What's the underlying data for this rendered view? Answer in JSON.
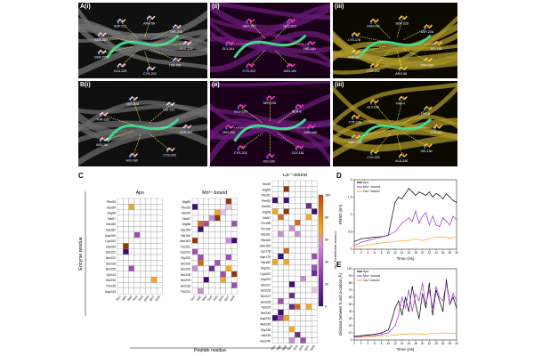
{
  "figure": {
    "panel_A_label": "A(i)",
    "panel_A_ii": "(ii)",
    "panel_A_iii": "(iii)",
    "panel_B_label": "B(i)",
    "panel_B_ii": "(ii)",
    "panel_B_iii": "(iii)",
    "panel_C_label": "C",
    "panel_D_label": "D",
    "panel_E_label": "E",
    "structure_labels": {
      "Ai": [
        "GLU-229",
        "HIS-180",
        "CYS-202",
        "GLU-226",
        "SER-225",
        "SER-227",
        "ASP-221",
        "ARG-56",
        "THR-235"
      ],
      "Aii": [
        "HIS-180",
        "ASN-160",
        "CYS-202",
        "GLY-181",
        "SER-157",
        "GLU-221"
      ],
      "Aiii": [
        "HIS-180",
        "THR-180",
        "ARG-56",
        "CYS-202",
        "ASP-61",
        "LYS-178",
        "ASN-162",
        "SER-226",
        "ASP-226"
      ],
      "Bi": [
        "SER-227",
        "CYS-202",
        "HIS-180",
        "ARG-56",
        "THR-226",
        "SER-225",
        "HIS-231"
      ],
      "Bii": [
        "ASN-160",
        "GLY-181",
        "HIS-180",
        "CYS-202",
        "SER-200",
        "GLU-226",
        "SER-228",
        "SER-8"
      ],
      "Biii": [
        "LYS-207",
        "HIS-180",
        "ALA-240",
        "CYS-202",
        "SER-230",
        "TYR-228",
        "GLY-236",
        "THR-4",
        "THR-8"
      ]
    }
  },
  "heatmap": {
    "colorbar_label": "H-bond occupancy (%)",
    "colorbar_ticks": [
      "100",
      "80",
      "60",
      "40",
      "20",
      "0"
    ],
    "y_axis_label": "Enzyme residue",
    "x_axis_label": "Peptide residue",
    "peptide_residues": [
      "Thr1",
      "Val2",
      "Ala3",
      "Thr4",
      "Thr5",
      "Gln6",
      "Gln7",
      "Ser8"
    ],
    "apo": {
      "title": "Apo",
      "rows": [
        "Phe53",
        "Asn54",
        "Arg56",
        "His57",
        "His160",
        "Gly181",
        "Asp200",
        "Cys202",
        "Gly203",
        "Ser221",
        "Ser222",
        "Glu226",
        "Ser225",
        "Tyr229",
        "Ser230",
        "Thr235",
        "Asp243"
      ]
    },
    "mn": {
      "title": "Mn²⁺-bound",
      "rows": [
        "Arg50",
        "Phe53",
        "Asn54",
        "His57",
        "Arg58",
        "Gly159",
        "His160",
        "Asn163",
        "Thr201",
        "Cys202",
        "Gly203",
        "Gln226",
        "Glu226",
        "Ser228",
        "Ser229",
        "Ser230",
        "Thr231"
      ]
    },
    "ca": {
      "title": "Ca²⁺-bound",
      "rows": [
        "Ser49",
        "Arg50",
        "Phe51",
        "Phe53",
        "Asn54",
        "Arg56",
        "His57",
        "Thr158",
        "Thr159",
        "Gly161",
        "His160",
        "Asn163",
        "Lys178",
        "Asp179",
        "His180",
        "Gly201",
        "Cys202",
        "Gly203",
        "Glu221",
        "Ser226",
        "Ser227",
        "Ser228",
        "Tyr229",
        "Ser230",
        "Asp234",
        "Met235",
        "Gly236",
        "Val239",
        "Asn240"
      ]
    }
  },
  "chart_data": [
    {
      "type": "line",
      "panel": "D",
      "xlabel": "Time (ns)",
      "ylabel": "RMSD (nm)",
      "xlim": [
        0,
        30
      ],
      "ylim": [
        0,
        2
      ],
      "xticks": [
        "0",
        "2",
        "4",
        "6",
        "8",
        "10",
        "12",
        "14",
        "16",
        "18",
        "20",
        "22",
        "24",
        "26",
        "28",
        "30"
      ],
      "yticks": [
        "0",
        "0.5",
        "1",
        "1.5",
        "2"
      ],
      "legend": "top-left",
      "series": [
        {
          "name": "Apo",
          "color": "#000000",
          "x": [
            0,
            2,
            4,
            6,
            8,
            10,
            11,
            12,
            13,
            14,
            15,
            16,
            17,
            18,
            19,
            20,
            21,
            22,
            23,
            24,
            25,
            26,
            27,
            28,
            29,
            30
          ],
          "y": [
            0.22,
            0.3,
            0.32,
            0.35,
            0.36,
            0.4,
            0.9,
            1.35,
            1.5,
            1.45,
            1.6,
            1.75,
            1.65,
            1.55,
            1.65,
            1.6,
            1.55,
            1.65,
            1.5,
            1.6,
            1.55,
            1.45,
            1.6,
            1.5,
            1.4,
            1.35
          ]
        },
        {
          "name": "Mn²⁺-bound",
          "color": "#9b30d9",
          "x": [
            0,
            2,
            4,
            6,
            8,
            10,
            12,
            14,
            16,
            17,
            18,
            19,
            20,
            21,
            22,
            23,
            24,
            25,
            26,
            27,
            28,
            29,
            30
          ],
          "y": [
            0.1,
            0.2,
            0.25,
            0.3,
            0.35,
            0.4,
            0.5,
            0.75,
            0.9,
            0.8,
            1.1,
            0.75,
            0.95,
            1.05,
            0.7,
            0.95,
            0.7,
            0.65,
            0.9,
            0.8,
            0.7,
            0.95,
            0.85
          ]
        },
        {
          "name": "Ca²⁺-bound",
          "color": "#f5a623",
          "x": [
            0,
            2,
            4,
            6,
            8,
            10,
            12,
            14,
            16,
            18,
            20,
            22,
            24,
            26,
            28,
            30
          ],
          "y": [
            0.05,
            0.1,
            0.12,
            0.15,
            0.18,
            0.2,
            0.22,
            0.25,
            0.25,
            0.3,
            0.25,
            0.3,
            0.35,
            0.35,
            0.32,
            0.35
          ]
        }
      ]
    },
    {
      "type": "line",
      "panel": "E",
      "xlabel": "Time (ns)",
      "ylabel": "Distance between S and α-carbon (Å)",
      "xlim": [
        0,
        30
      ],
      "ylim": [
        0,
        100
      ],
      "xticks": [
        "0",
        "2",
        "4",
        "6",
        "8",
        "10",
        "12",
        "14",
        "16",
        "18",
        "20",
        "22",
        "24",
        "26",
        "28",
        "30"
      ],
      "yticks": [
        "0",
        "10",
        "20",
        "30",
        "40",
        "50",
        "60",
        "70",
        "80",
        "90",
        "100"
      ],
      "legend": "top-left",
      "series": [
        {
          "name": "Apo",
          "color": "#000000",
          "x": [
            0,
            2,
            4,
            6,
            8,
            10,
            11,
            12,
            13,
            14,
            15,
            16,
            17,
            18,
            19,
            20,
            21,
            22,
            23,
            24,
            25,
            26,
            27,
            28,
            29,
            30
          ],
          "y": [
            5,
            6,
            7,
            8,
            10,
            14,
            28,
            45,
            55,
            35,
            60,
            40,
            75,
            50,
            30,
            65,
            45,
            80,
            35,
            70,
            55,
            40,
            85,
            50,
            60,
            45
          ]
        },
        {
          "name": "Mn²⁺-bound",
          "color": "#9b30d9",
          "x": [
            0,
            2,
            4,
            6,
            8,
            10,
            12,
            13,
            14,
            15,
            16,
            17,
            18,
            19,
            20,
            21,
            22,
            23,
            24,
            25,
            26,
            27,
            28,
            29,
            30
          ],
          "y": [
            4,
            5,
            6,
            6,
            8,
            10,
            20,
            35,
            60,
            45,
            70,
            40,
            65,
            55,
            80,
            50,
            70,
            45,
            75,
            60,
            55,
            80,
            50,
            65,
            55
          ]
        },
        {
          "name": "Ca²⁺-bound",
          "color": "#f5a623",
          "x": [
            0,
            2,
            4,
            6,
            8,
            10,
            12,
            14,
            16,
            18,
            20,
            22,
            24,
            26,
            28,
            30
          ],
          "y": [
            3,
            4,
            5,
            5,
            6,
            6,
            7,
            8,
            8,
            9,
            8,
            9,
            9,
            10,
            9,
            10
          ]
        }
      ]
    }
  ]
}
